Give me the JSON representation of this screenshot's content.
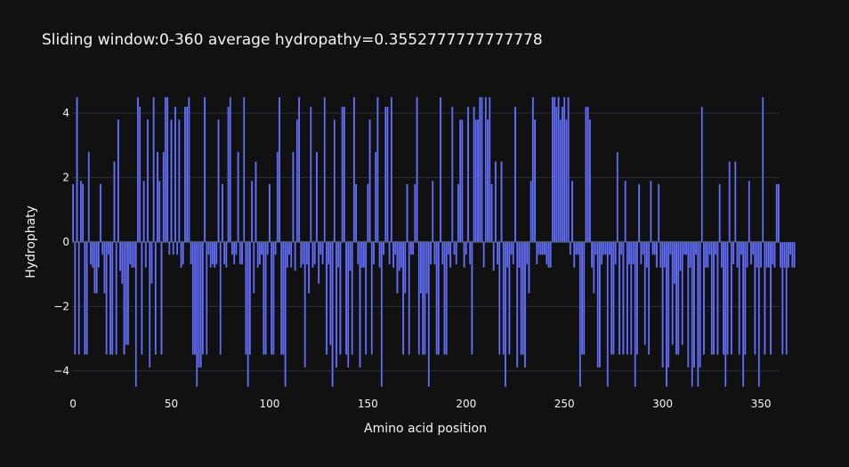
{
  "chart_data": {
    "type": "bar",
    "title": "Sliding window:0-360 average hydropathy=0.3552777777777778",
    "xlabel": "Amino acid position",
    "ylabel": "Hydrophaty",
    "xlim": [
      -0.5,
      359.5
    ],
    "ylim": [
      -4.75,
      4.75
    ],
    "xticks": [
      0,
      50,
      100,
      150,
      200,
      250,
      300,
      350
    ],
    "yticks": [
      -4,
      -2,
      0,
      2,
      4
    ],
    "grid": true,
    "color": "#636efa",
    "background": "#111111",
    "x_start": 0,
    "values": [
      1.8,
      -3.5,
      4.5,
      -3.5,
      1.9,
      1.8,
      -3.5,
      -3.5,
      2.8,
      -0.7,
      -0.8,
      -1.6,
      -1.6,
      -0.8,
      1.8,
      -0.4,
      -1.6,
      -3.5,
      -0.4,
      -3.5,
      -3.5,
      2.5,
      -3.5,
      3.8,
      -0.9,
      -1.3,
      -3.5,
      -3.2,
      -3.2,
      -0.7,
      -0.8,
      -0.8,
      -4.5,
      4.5,
      4.2,
      -3.5,
      1.9,
      -0.8,
      3.8,
      -3.9,
      -1.3,
      4.5,
      -3.5,
      2.8,
      1.9,
      -3.5,
      2.8,
      4.5,
      4.5,
      -0.4,
      3.8,
      -0.4,
      4.2,
      -0.4,
      3.8,
      -0.8,
      -0.7,
      4.2,
      4.2,
      4.5,
      -0.7,
      -3.5,
      -3.5,
      -4.5,
      -3.9,
      -3.9,
      -3.5,
      4.5,
      -3.5,
      -0.4,
      -0.8,
      -0.7,
      -0.8,
      -0.7,
      3.8,
      -3.5,
      1.8,
      -0.7,
      -0.8,
      4.2,
      4.5,
      -0.4,
      -0.7,
      -0.4,
      2.8,
      -0.7,
      -0.7,
      4.5,
      -3.5,
      -4.5,
      -3.5,
      1.9,
      -1.6,
      2.5,
      -0.8,
      -0.7,
      -0.4,
      -3.5,
      -3.5,
      -0.4,
      1.8,
      -3.5,
      -3.5,
      -0.4,
      2.8,
      4.5,
      -3.5,
      -3.5,
      -4.5,
      -0.8,
      -0.4,
      -0.8,
      2.8,
      -0.9,
      3.8,
      4.5,
      -0.8,
      -0.7,
      -3.9,
      -0.7,
      -1.6,
      4.2,
      -0.8,
      -0.7,
      2.8,
      -1.3,
      -0.4,
      -0.7,
      4.5,
      -3.5,
      -0.7,
      -3.2,
      -4.5,
      3.8,
      -3.9,
      -0.8,
      -3.5,
      4.2,
      4.2,
      -3.5,
      -3.9,
      -0.9,
      -3.5,
      4.5,
      1.8,
      -0.7,
      -3.9,
      -0.8,
      -0.8,
      -3.5,
      1.8,
      3.8,
      -3.5,
      -0.7,
      2.8,
      4.5,
      -0.8,
      -4.5,
      -0.4,
      4.2,
      4.2,
      -0.7,
      4.5,
      -0.8,
      -0.4,
      -1.6,
      -0.9,
      -0.8,
      -3.5,
      -1.6,
      1.8,
      -3.5,
      -0.4,
      -0.4,
      1.8,
      4.5,
      -3.5,
      -1.6,
      -3.5,
      -3.5,
      -1.6,
      -4.5,
      -0.7,
      1.9,
      -0.7,
      -3.5,
      -3.5,
      4.5,
      -0.7,
      -3.5,
      -3.5,
      -0.4,
      -0.8,
      4.2,
      -0.4,
      -0.7,
      1.8,
      3.8,
      3.8,
      -0.8,
      -0.4,
      4.2,
      -0.7,
      -3.5,
      4.2,
      3.8,
      3.8,
      4.5,
      4.5,
      -0.8,
      4.5,
      3.8,
      4.5,
      1.8,
      -0.9,
      2.5,
      -0.7,
      -3.5,
      2.5,
      -3.5,
      -4.5,
      -0.8,
      -3.5,
      -0.4,
      -0.7,
      4.2,
      -3.9,
      -0.8,
      -3.5,
      -3.5,
      -3.9,
      -0.7,
      -1.6,
      1.9,
      4.5,
      3.8,
      -0.7,
      -0.4,
      -0.4,
      -0.4,
      -0.4,
      -0.7,
      -0.8,
      -0.8,
      4.5,
      4.5,
      4.2,
      4.5,
      3.8,
      4.2,
      4.5,
      3.8,
      4.5,
      -0.4,
      1.9,
      -0.8,
      -0.4,
      -0.4,
      -4.5,
      -3.5,
      -3.5,
      4.2,
      4.2,
      3.8,
      -0.8,
      -1.6,
      -0.4,
      -3.9,
      -3.9,
      -0.7,
      -0.4,
      -0.4,
      -4.5,
      -0.4,
      -3.5,
      -3.5,
      -0.7,
      2.8,
      -3.5,
      -0.4,
      -3.5,
      1.9,
      -3.5,
      -0.7,
      -3.5,
      -0.7,
      -4.5,
      -3.5,
      1.8,
      -0.7,
      -0.4,
      -3.2,
      -0.8,
      -3.5,
      1.9,
      -0.4,
      -0.4,
      -0.8,
      1.8,
      -0.8,
      -3.9,
      -0.8,
      -4.5,
      -3.9,
      -0.4,
      -3.2,
      -1.3,
      -3.5,
      -3.5,
      -0.9,
      -3.2,
      -0.4,
      -0.4,
      -3.9,
      -0.8,
      -4.5,
      -3.9,
      -0.4,
      -4.5,
      -3.9,
      4.2,
      -3.5,
      -0.8,
      -0.8,
      -0.4,
      -3.5,
      -3.5,
      -0.4,
      -3.5,
      1.8,
      -0.8,
      -3.5,
      -4.5,
      -3.5,
      2.5,
      -3.5,
      -0.7,
      2.5,
      -0.8,
      -3.5,
      -0.4,
      -4.5,
      -3.5,
      -0.8,
      1.9,
      -0.7,
      -0.4,
      -3.5,
      -0.8,
      -4.5,
      -0.8,
      4.5,
      -3.5,
      -0.8,
      -0.8,
      -3.5,
      -0.7,
      -0.8,
      1.8,
      1.8,
      -0.8,
      -3.5,
      -0.8,
      -3.5,
      -0.8,
      -0.4,
      -0.8,
      -0.8
    ]
  }
}
